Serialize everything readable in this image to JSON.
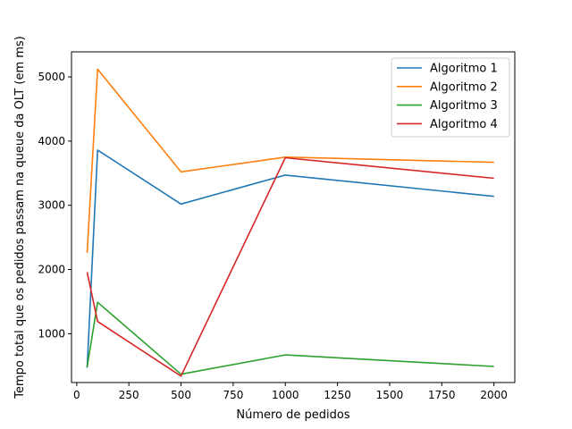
{
  "chart_data": {
    "type": "line",
    "xlabel": "Número de pedidos",
    "ylabel": "Tempo total que os pedidos passam na queue da OLT (em ms)",
    "xlim": [
      -25,
      2100
    ],
    "ylim": [
      240,
      5390
    ],
    "xticks": [
      0,
      250,
      500,
      750,
      1000,
      1250,
      1500,
      1750,
      2000
    ],
    "yticks": [
      1000,
      2000,
      3000,
      4000,
      5000
    ],
    "grid": false,
    "legend_position": "top-right",
    "series": [
      {
        "name": "Algoritmo 1",
        "color": "#1f77b4",
        "x": [
          50,
          100,
          500,
          1000,
          2000
        ],
        "y": [
          470,
          3860,
          3020,
          3470,
          3140
        ]
      },
      {
        "name": "Algoritmo 2",
        "color": "#ff7f0e",
        "x": [
          50,
          100,
          500,
          1000,
          2000
        ],
        "y": [
          2260,
          5120,
          3520,
          3750,
          3670
        ]
      },
      {
        "name": "Algoritmo 3",
        "color": "#2ca02c",
        "x": [
          50,
          100,
          500,
          1000,
          2000
        ],
        "y": [
          480,
          1490,
          370,
          670,
          490
        ]
      },
      {
        "name": "Algoritmo 4",
        "color": "#d62728",
        "x": [
          50,
          100,
          500,
          1000,
          2000
        ],
        "y": [
          1960,
          1190,
          340,
          3740,
          3420
        ]
      }
    ]
  }
}
